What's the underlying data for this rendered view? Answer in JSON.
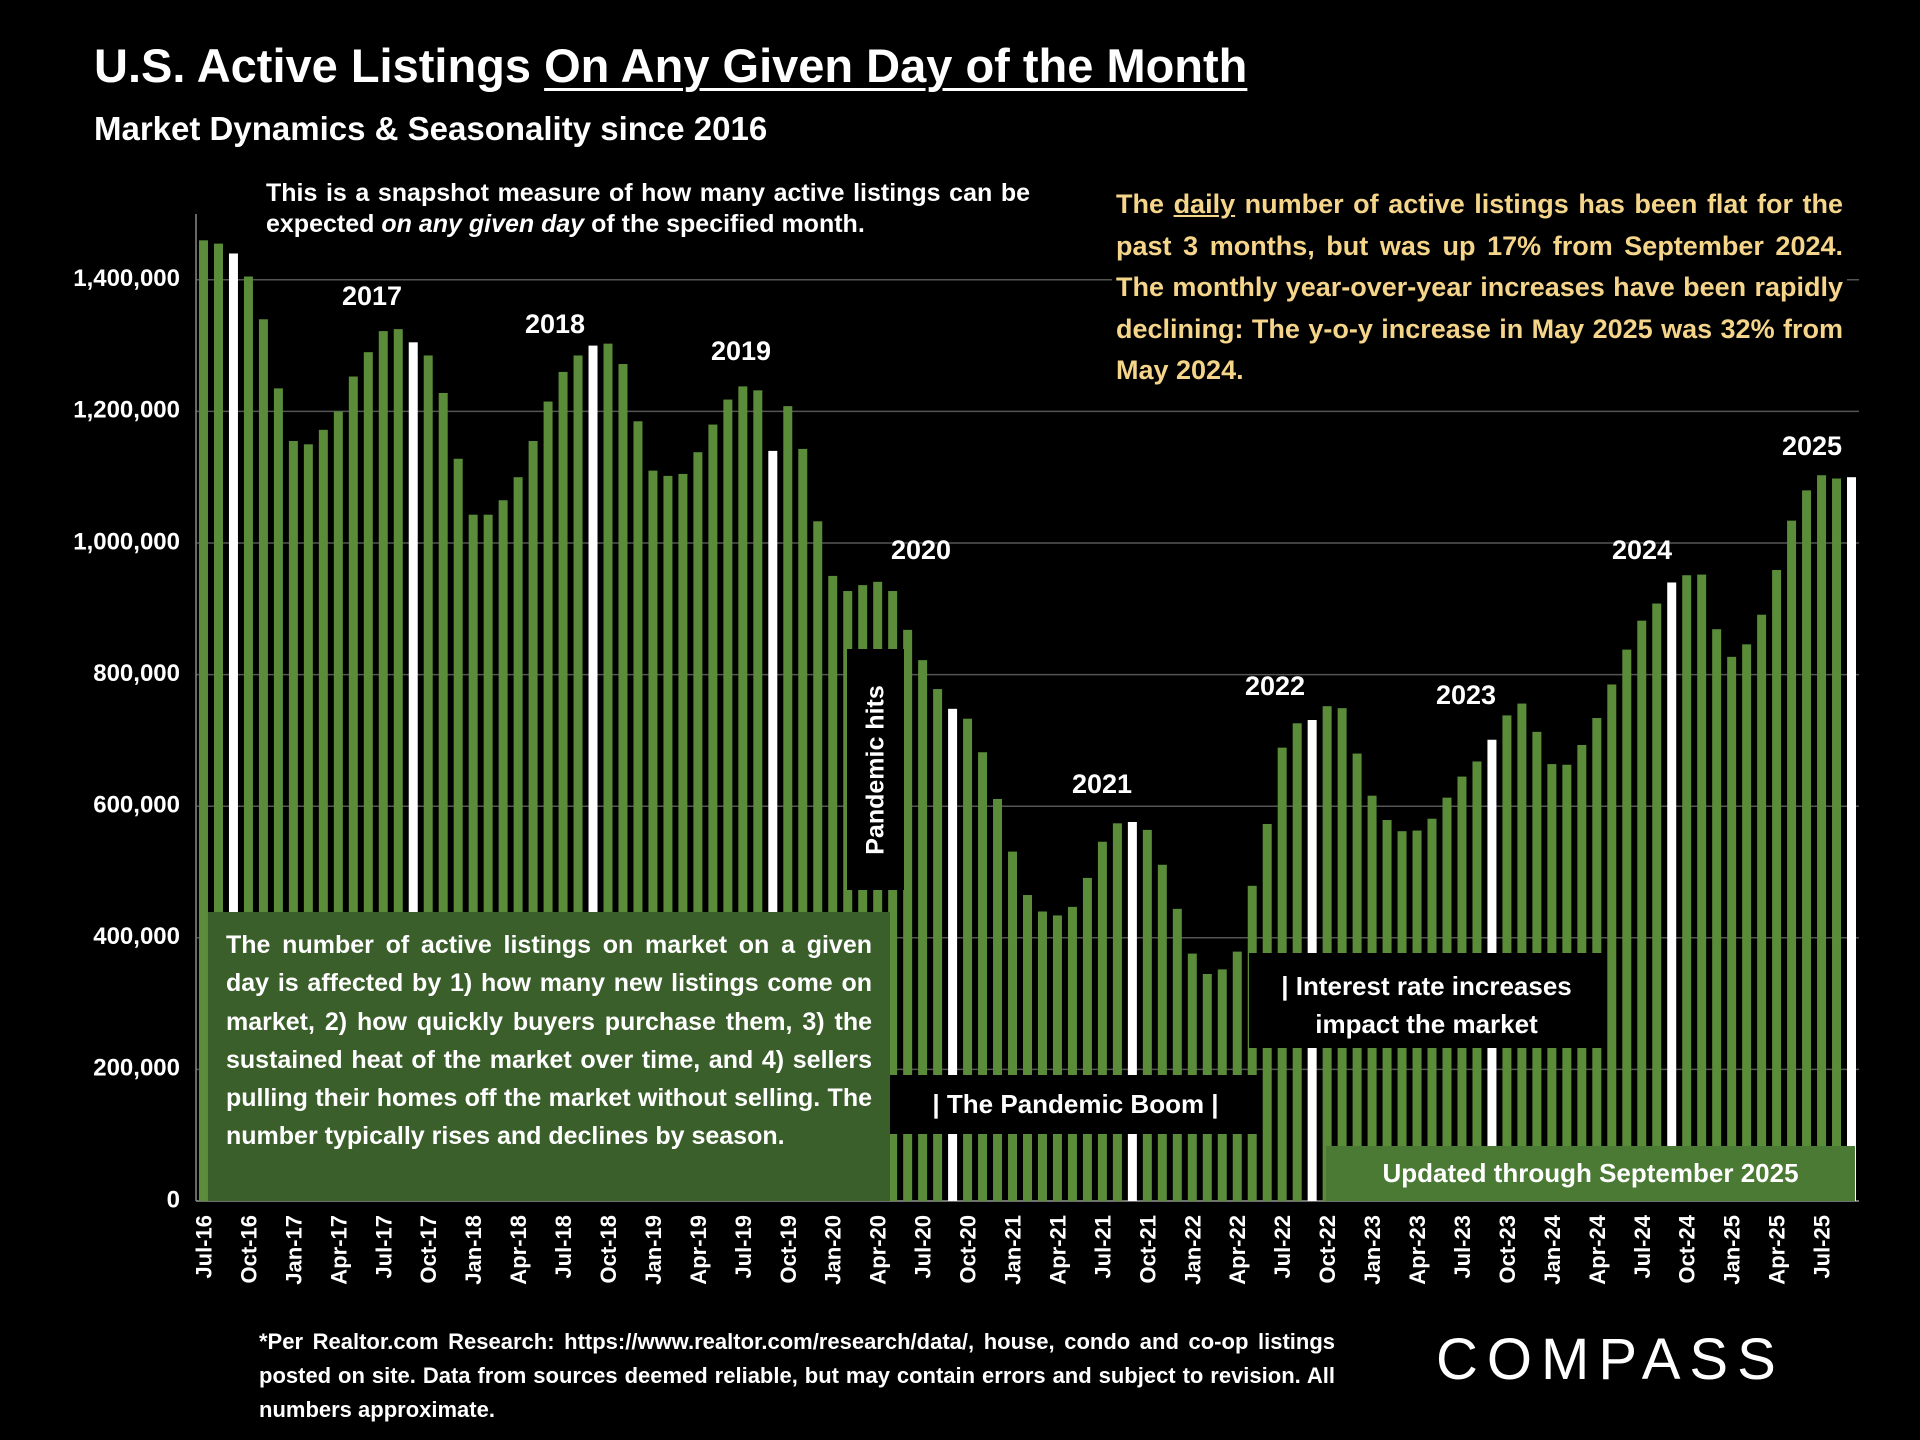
{
  "chart_data": {
    "type": "bar",
    "title": [
      "U.S. Active Listings",
      "On Any Given Day of the Month"
    ],
    "subtitle": "Market Dynamics & Seasonality since 2016",
    "note_top": [
      "This is a snapshot measure of how many active listings can be expected",
      "on any given day",
      "of the specified month."
    ],
    "note_right": [
      "The",
      "daily",
      "number of active listings has been flat for the past 3 months, but was up 17% from September 2024. The monthly year-over-year increases have been rapidly declining:  The y-o-y increase in May 2025 was 32% from May 2024."
    ],
    "note_left": "The number of active listings on market on a given day is affected by 1) how many new listings come on market, 2) how quickly buyers purchase them, 3) the sustained heat of the market over time, and 4) sellers pulling their homes off the market without selling. The number typically rises and declines by season.",
    "annotations": [
      "Pandemic hits",
      "| The Pandemic Boom |",
      "| Interest rate increases impact the market",
      "Updated through September 2025"
    ],
    "year_labels": [
      "2017",
      "2018",
      "2019",
      "2020",
      "2021",
      "2022",
      "2023",
      "2024",
      "2025"
    ],
    "footnote": "*Per Realtor.com Research:  https://www.realtor.com/research/data/, house, condo and co-op listings posted on site. Data from sources deemed reliable, but may contain errors and subject to revision. All numbers approximate.",
    "logo": "COMPASS",
    "categories": [
      "Jul-16",
      null,
      null,
      "Oct-16",
      null,
      null,
      "Jan-17",
      null,
      null,
      "Apr-17",
      null,
      null,
      "Jul-17",
      null,
      null,
      "Oct-17",
      null,
      null,
      "Jan-18",
      null,
      null,
      "Apr-18",
      null,
      null,
      "Jul-18",
      null,
      null,
      "Oct-18",
      null,
      null,
      "Jan-19",
      null,
      null,
      "Apr-19",
      null,
      null,
      "Jul-19",
      null,
      null,
      "Oct-19",
      null,
      null,
      "Jan-20",
      null,
      null,
      "Apr-20",
      null,
      null,
      "Jul-20",
      null,
      null,
      "Oct-20",
      null,
      null,
      "Jan-21",
      null,
      null,
      "Apr-21",
      null,
      null,
      "Jul-21",
      null,
      null,
      "Oct-21",
      null,
      null,
      "Jan-22",
      null,
      null,
      "Apr-22",
      null,
      null,
      "Jul-22",
      null,
      null,
      "Oct-22",
      null,
      null,
      "Jan-23",
      null,
      null,
      "Apr-23",
      null,
      null,
      "Jul-23",
      null,
      null,
      "Oct-23",
      null,
      null,
      "Jan-24",
      null,
      null,
      "Apr-24",
      null,
      null,
      "Jul-24",
      null,
      null,
      "Oct-24",
      null,
      null,
      "Jan-25",
      null,
      null,
      "Apr-25",
      null,
      null,
      "Jul-25",
      null,
      null
    ],
    "values": [
      1460000,
      1455000,
      1440000,
      1405000,
      1340000,
      1235000,
      1155000,
      1150000,
      1172000,
      1200000,
      1253000,
      1290000,
      1322000,
      1325000,
      1305000,
      1285000,
      1228000,
      1128000,
      1043000,
      1043000,
      1065000,
      1100000,
      1155000,
      1215000,
      1260000,
      1285000,
      1300000,
      1303000,
      1272000,
      1185000,
      1110000,
      1102000,
      1105000,
      1138000,
      1180000,
      1218000,
      1238000,
      1232000,
      1140000,
      1208000,
      1143000,
      1033000,
      950000,
      927000,
      936000,
      941000,
      927000,
      868000,
      822000,
      778000,
      748000,
      733000,
      682000,
      611000,
      531000,
      465000,
      440000,
      434000,
      447000,
      491000,
      546000,
      574000,
      576000,
      564000,
      511000,
      444000,
      376000,
      345000,
      352000,
      379000,
      479000,
      573000,
      689000,
      726000,
      731000,
      752000,
      749000,
      680000,
      616000,
      579000,
      562000,
      563000,
      581000,
      613000,
      645000,
      668000,
      701000,
      738000,
      756000,
      713000,
      664000,
      663000,
      693000,
      734000,
      785000,
      838000,
      882000,
      908000,
      940000,
      951000,
      952000,
      869000,
      827000,
      846000,
      891000,
      959000,
      1034000,
      1080000,
      1103000,
      1098000,
      1100000
    ],
    "colors": [
      "#5b8c3a",
      "#5b8c3a",
      "#ffffff",
      "#5b8c3a",
      "#5b8c3a",
      "#5b8c3a",
      "#5b8c3a",
      "#5b8c3a",
      "#5b8c3a",
      "#5b8c3a",
      "#5b8c3a",
      "#5b8c3a",
      "#5b8c3a",
      "#5b8c3a",
      "#ffffff",
      "#5b8c3a",
      "#5b8c3a",
      "#5b8c3a",
      "#5b8c3a",
      "#5b8c3a",
      "#5b8c3a",
      "#5b8c3a",
      "#5b8c3a",
      "#5b8c3a",
      "#5b8c3a",
      "#5b8c3a",
      "#ffffff",
      "#5b8c3a",
      "#5b8c3a",
      "#5b8c3a",
      "#5b8c3a",
      "#5b8c3a",
      "#5b8c3a",
      "#5b8c3a",
      "#5b8c3a",
      "#5b8c3a",
      "#5b8c3a",
      "#5b8c3a",
      "#ffffff",
      "#5b8c3a",
      "#5b8c3a",
      "#5b8c3a",
      "#5b8c3a",
      "#5b8c3a",
      "#5b8c3a",
      "#5b8c3a",
      "#5b8c3a",
      "#5b8c3a",
      "#5b8c3a",
      "#5b8c3a",
      "#ffffff",
      "#5b8c3a",
      "#5b8c3a",
      "#5b8c3a",
      "#5b8c3a",
      "#5b8c3a",
      "#5b8c3a",
      "#5b8c3a",
      "#5b8c3a",
      "#5b8c3a",
      "#5b8c3a",
      "#5b8c3a",
      "#ffffff",
      "#5b8c3a",
      "#5b8c3a",
      "#5b8c3a",
      "#5b8c3a",
      "#5b8c3a",
      "#5b8c3a",
      "#5b8c3a",
      "#5b8c3a",
      "#5b8c3a",
      "#5b8c3a",
      "#5b8c3a",
      "#ffffff",
      "#5b8c3a",
      "#5b8c3a",
      "#5b8c3a",
      "#5b8c3a",
      "#5b8c3a",
      "#5b8c3a",
      "#5b8c3a",
      "#5b8c3a",
      "#5b8c3a",
      "#5b8c3a",
      "#5b8c3a",
      "#ffffff",
      "#5b8c3a",
      "#5b8c3a",
      "#5b8c3a",
      "#5b8c3a",
      "#5b8c3a",
      "#5b8c3a",
      "#5b8c3a",
      "#5b8c3a",
      "#5b8c3a",
      "#5b8c3a",
      "#5b8c3a",
      "#ffffff",
      "#5b8c3a",
      "#5b8c3a",
      "#5b8c3a",
      "#5b8c3a",
      "#5b8c3a",
      "#5b8c3a",
      "#5b8c3a",
      "#5b8c3a",
      "#5b8c3a",
      "#5b8c3a",
      "#5b8c3a",
      "#ffffff"
    ],
    "ylim": [
      0,
      1500000
    ],
    "yticks": [
      0,
      {
        "value": 200000,
        "label": "200,000"
      },
      {
        "value": 400000,
        "label": "400,000"
      },
      {
        "value": 600000,
        "label": "600,000"
      },
      {
        "value": 800000,
        "label": "800,000"
      },
      {
        "value": 1000000,
        "label": "1,000,000"
      },
      {
        "value": 1200000,
        "label": "1,200,000"
      },
      {
        "value": 1400000,
        "label": "1,400,000"
      }
    ],
    "grid": true
  }
}
